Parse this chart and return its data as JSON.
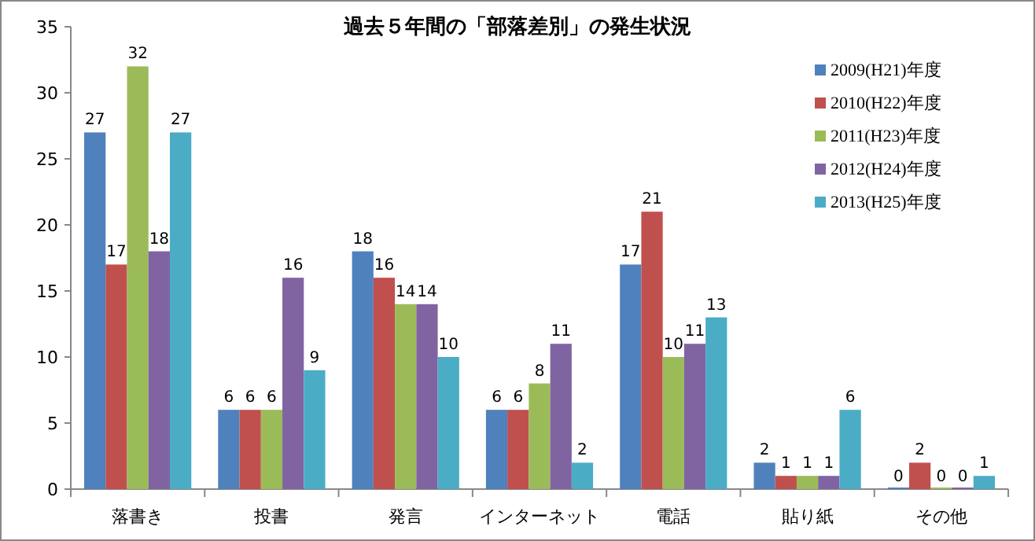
{
  "chart_data": {
    "type": "bar",
    "title": "過去５年間の「部落差別」の発生状況",
    "categories": [
      "落書き",
      "投書",
      "発言",
      "インターネット",
      "電話",
      "貼り紙",
      "その他"
    ],
    "series": [
      {
        "name": "2009(H21)年度",
        "color": "#4f81bd",
        "values": [
          27,
          6,
          18,
          6,
          17,
          2,
          0
        ]
      },
      {
        "name": "2010(H22)年度",
        "color": "#c0504d",
        "values": [
          17,
          6,
          16,
          6,
          21,
          1,
          2
        ]
      },
      {
        "name": "2011(H23)年度",
        "color": "#9bbb59",
        "values": [
          32,
          6,
          14,
          8,
          10,
          1,
          0
        ]
      },
      {
        "name": "2012(H24)年度",
        "color": "#8064a2",
        "values": [
          18,
          16,
          14,
          11,
          11,
          1,
          0
        ]
      },
      {
        "name": "2013(H25)年度",
        "color": "#4bacc6",
        "values": [
          27,
          9,
          10,
          2,
          13,
          6,
          1
        ]
      }
    ],
    "ylim": [
      0,
      35
    ],
    "yticks": [
      0,
      5,
      10,
      15,
      20,
      25,
      30,
      35
    ],
    "data_labels": true,
    "legend": "top right",
    "grid": false
  }
}
